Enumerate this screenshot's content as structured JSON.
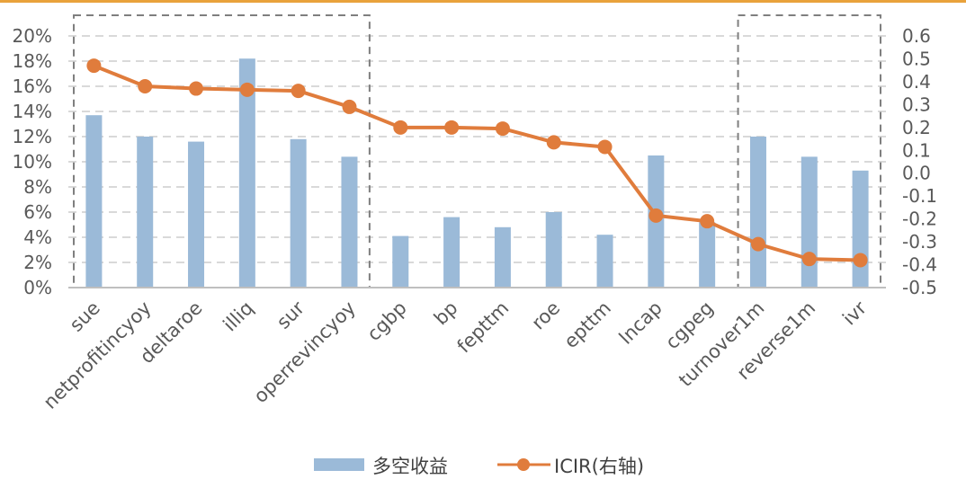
{
  "colors": {
    "bar": "#9bbad8",
    "line": "#e07c3c",
    "grid": "#d9d9d9",
    "axis": "#bfbfbf",
    "box": "#7f7f7f",
    "text": "#595959",
    "top_rule": "#e9a23b"
  },
  "chart_data": {
    "type": "bar",
    "categories": [
      "sue",
      "netprofitincyoy",
      "deltaroe",
      "illiq",
      "sur",
      "operrevincyoy",
      "cgbp",
      "bp",
      "fepttm",
      "roe",
      "epttm",
      "lncap",
      "cgpeg",
      "turnover1m",
      "reverse1m",
      "ivr"
    ],
    "series": [
      {
        "name": "多空收益",
        "type": "bar",
        "axis": "left",
        "values": [
          13.7,
          12.0,
          11.6,
          18.2,
          11.8,
          10.4,
          4.1,
          5.6,
          4.8,
          6.0,
          4.2,
          10.5,
          5.2,
          12.0,
          10.4,
          9.3
        ]
      },
      {
        "name": "ICIR(右轴)",
        "type": "line",
        "axis": "right",
        "values": [
          0.47,
          0.38,
          0.37,
          0.365,
          0.36,
          0.29,
          0.2,
          0.2,
          0.195,
          0.135,
          0.115,
          -0.185,
          -0.21,
          -0.31,
          -0.375,
          -0.38
        ]
      }
    ],
    "y_left": {
      "min": 0,
      "max": 20,
      "step": 2,
      "unit": "%"
    },
    "y_right": {
      "min": -0.5,
      "max": 0.6,
      "step": 0.1
    },
    "left_tick_labels": [
      "0%",
      "2%",
      "4%",
      "6%",
      "8%",
      "10%",
      "12%",
      "14%",
      "16%",
      "18%",
      "20%"
    ],
    "right_tick_labels": [
      "-0.5",
      "-0.4",
      "-0.3",
      "-0.2",
      "-0.1",
      "0.0",
      "0.1",
      "0.2",
      "0.3",
      "0.4",
      "0.5",
      "0.6"
    ],
    "highlight_groups": [
      {
        "from": "sue",
        "to": "operrevincyoy"
      },
      {
        "from": "turnover1m",
        "to": "ivr"
      }
    ],
    "grid": true,
    "legend_position": "bottom"
  }
}
